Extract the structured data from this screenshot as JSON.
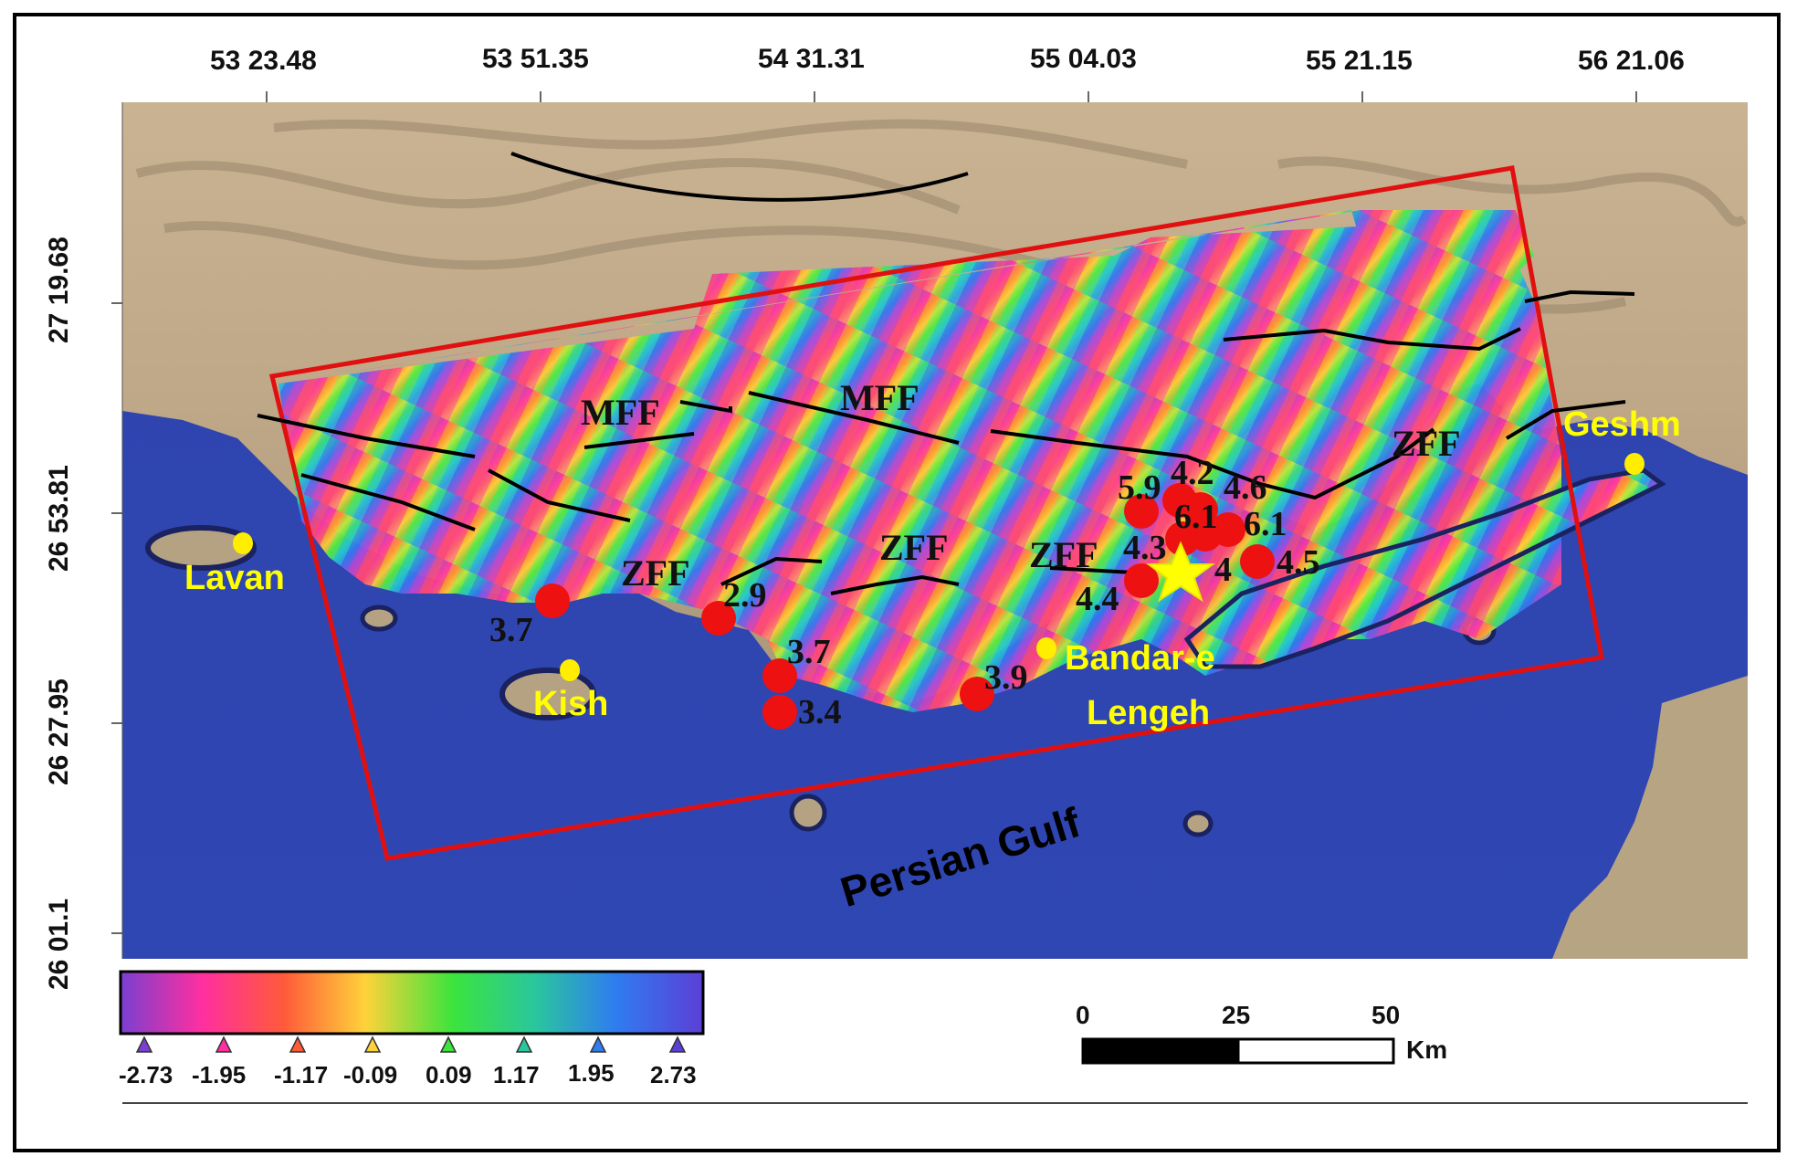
{
  "top_ticks": [
    {
      "text": "53 23.48"
    },
    {
      "text": "53 51.35"
    },
    {
      "text": "54 31.31"
    },
    {
      "text": "55 04.03"
    },
    {
      "text": "55 21.15"
    },
    {
      "text": "56 21.06"
    }
  ],
  "left_ticks": [
    {
      "text": "27 19.68"
    },
    {
      "text": "26 53.81"
    },
    {
      "text": "26 27.95"
    },
    {
      "text": "26 01.1"
    }
  ],
  "places": {
    "lavan": "Lavan",
    "kish": "Kish",
    "geshm": "Geshm",
    "bandar_line1": "Bandar-e",
    "bandar_line2": "Lengeh"
  },
  "sea_label": "Persian Gulf",
  "faults": [
    "MFF",
    "MFF",
    "ZFF",
    "ZFF",
    "ZFF",
    "ZFF"
  ],
  "magnitudes": [
    "3.7",
    "2.9",
    "3.7",
    "3.4",
    "3.9",
    "4.4",
    "5.9",
    "4.2",
    "4.6",
    "6.1",
    "6.1",
    "4.3",
    "4",
    "4.5"
  ],
  "colorbar": {
    "ticks": [
      "-2.73",
      "-1.95",
      "-1.17",
      "-0.09",
      "0.09",
      "1.17",
      "1.95",
      "2.73"
    ],
    "colors": [
      "#7a3fd0",
      "#ff2fa0",
      "#ff5a3a",
      "#ffd23a",
      "#3ce43c",
      "#2ac79c",
      "#2f7cf0",
      "#5c3fd6"
    ]
  },
  "scalebar": {
    "labels": [
      "0",
      "25",
      "50"
    ],
    "unit": "Km"
  },
  "colors": {
    "epicenter_markers": "#ee1111",
    "place_markers": "#ffee00",
    "study_area_border": "#e01010",
    "main_shock_star": "#ffff00",
    "sea": "#2a3fa8"
  }
}
